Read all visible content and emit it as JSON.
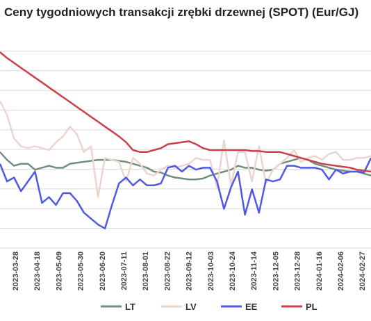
{
  "chart_data": {
    "type": "line",
    "title": "Ceny tygodniowych transakcji zrębki drzewnej (SPOT) (Eur/GJ)",
    "xlabel": "",
    "ylabel": "",
    "grid": true,
    "legend_position": "bottom",
    "ylim": [
      0,
      10
    ],
    "x_tick_labels": [
      "2023-03-28",
      "2023-04-18",
      "2023-05-09",
      "2023-05-30",
      "2023-06-20",
      "2023-07-11",
      "2023-08-01",
      "2023-08-22",
      "2023-09-12",
      "2023-10-03",
      "2023-10-24",
      "2023-11-14",
      "2023-12-05",
      "2023-12-28",
      "2024-01-16",
      "2024-02-06",
      "2024-02-27"
    ],
    "colors": {
      "LT": "#6f8f7c",
      "LV": "#ecd5cf",
      "EE": "#5058e6",
      "PL": "#c7404c"
    },
    "series": [
      {
        "name": "LT",
        "values": [
          4.9,
          4.5,
          4.2,
          4.3,
          4.3,
          4.0,
          4.1,
          4.2,
          4.1,
          4.1,
          4.3,
          4.35,
          4.4,
          4.45,
          4.5,
          4.5,
          4.5,
          4.45,
          4.4,
          4.3,
          4.2,
          4.1,
          3.9,
          3.85,
          3.7,
          3.6,
          3.55,
          3.5,
          3.5,
          3.55,
          3.7,
          3.8,
          3.9,
          4.0,
          4.2,
          4.1,
          4.1,
          4.0,
          3.95,
          4.0,
          4.3,
          4.4,
          4.5,
          4.6,
          4.5,
          4.3,
          4.2,
          4.1,
          4.0,
          3.95,
          3.9,
          3.9,
          3.8,
          3.7
        ]
      },
      {
        "name": "LV",
        "values": [
          7.5,
          6.8,
          5.6,
          5.2,
          5.1,
          5.2,
          5.1,
          5.0,
          5.4,
          5.7,
          6.2,
          5.8,
          4.9,
          5.2,
          2.6,
          4.6,
          4.5,
          4.4,
          3.4,
          4.6,
          4.3,
          3.8,
          3.7,
          4.0,
          4.2,
          4.1,
          4.2,
          4.3,
          4.6,
          4.5,
          4.5,
          3.1,
          5.5,
          3.2,
          4.9,
          4.9,
          3.4,
          5.2,
          3.3,
          4.0,
          4.3,
          4.6,
          5.0,
          4.4,
          4.6,
          4.7,
          4.5,
          4.8,
          4.9,
          4.5,
          4.5,
          4.6,
          4.6,
          4.7
        ]
      },
      {
        "name": "EE",
        "values": [
          4.3,
          3.4,
          3.6,
          2.9,
          3.4,
          3.9,
          2.3,
          2.6,
          2.2,
          2.8,
          2.8,
          2.4,
          1.8,
          1.5,
          1.2,
          1.0,
          2.2,
          3.3,
          3.6,
          3.2,
          3.5,
          3.2,
          3.2,
          3.3,
          4.1,
          4.2,
          3.9,
          4.2,
          4.0,
          4.1,
          4.1,
          3.4,
          2.0,
          3.1,
          3.9,
          1.7,
          3.0,
          1.8,
          3.5,
          3.4,
          3.5,
          4.2,
          4.2,
          4.1,
          4.1,
          4.1,
          4.0,
          3.5,
          4.0,
          3.8,
          3.9,
          3.9,
          3.85,
          4.6
        ]
      },
      {
        "name": "PL",
        "values": [
          10.0,
          9.7,
          9.45,
          9.2,
          8.95,
          8.7,
          8.45,
          8.2,
          7.95,
          7.7,
          7.45,
          7.2,
          6.95,
          6.7,
          6.45,
          6.2,
          5.95,
          5.7,
          5.4,
          5.0,
          4.9,
          4.9,
          5.0,
          5.1,
          5.3,
          5.35,
          5.4,
          5.45,
          5.3,
          5.1,
          5.0,
          5.0,
          5.0,
          5.0,
          5.0,
          5.0,
          4.95,
          4.95,
          4.9,
          4.9,
          4.9,
          4.8,
          4.7,
          4.6,
          4.5,
          4.4,
          4.3,
          4.25,
          4.2,
          4.15,
          4.1,
          4.0,
          3.95,
          3.9
        ]
      }
    ]
  }
}
